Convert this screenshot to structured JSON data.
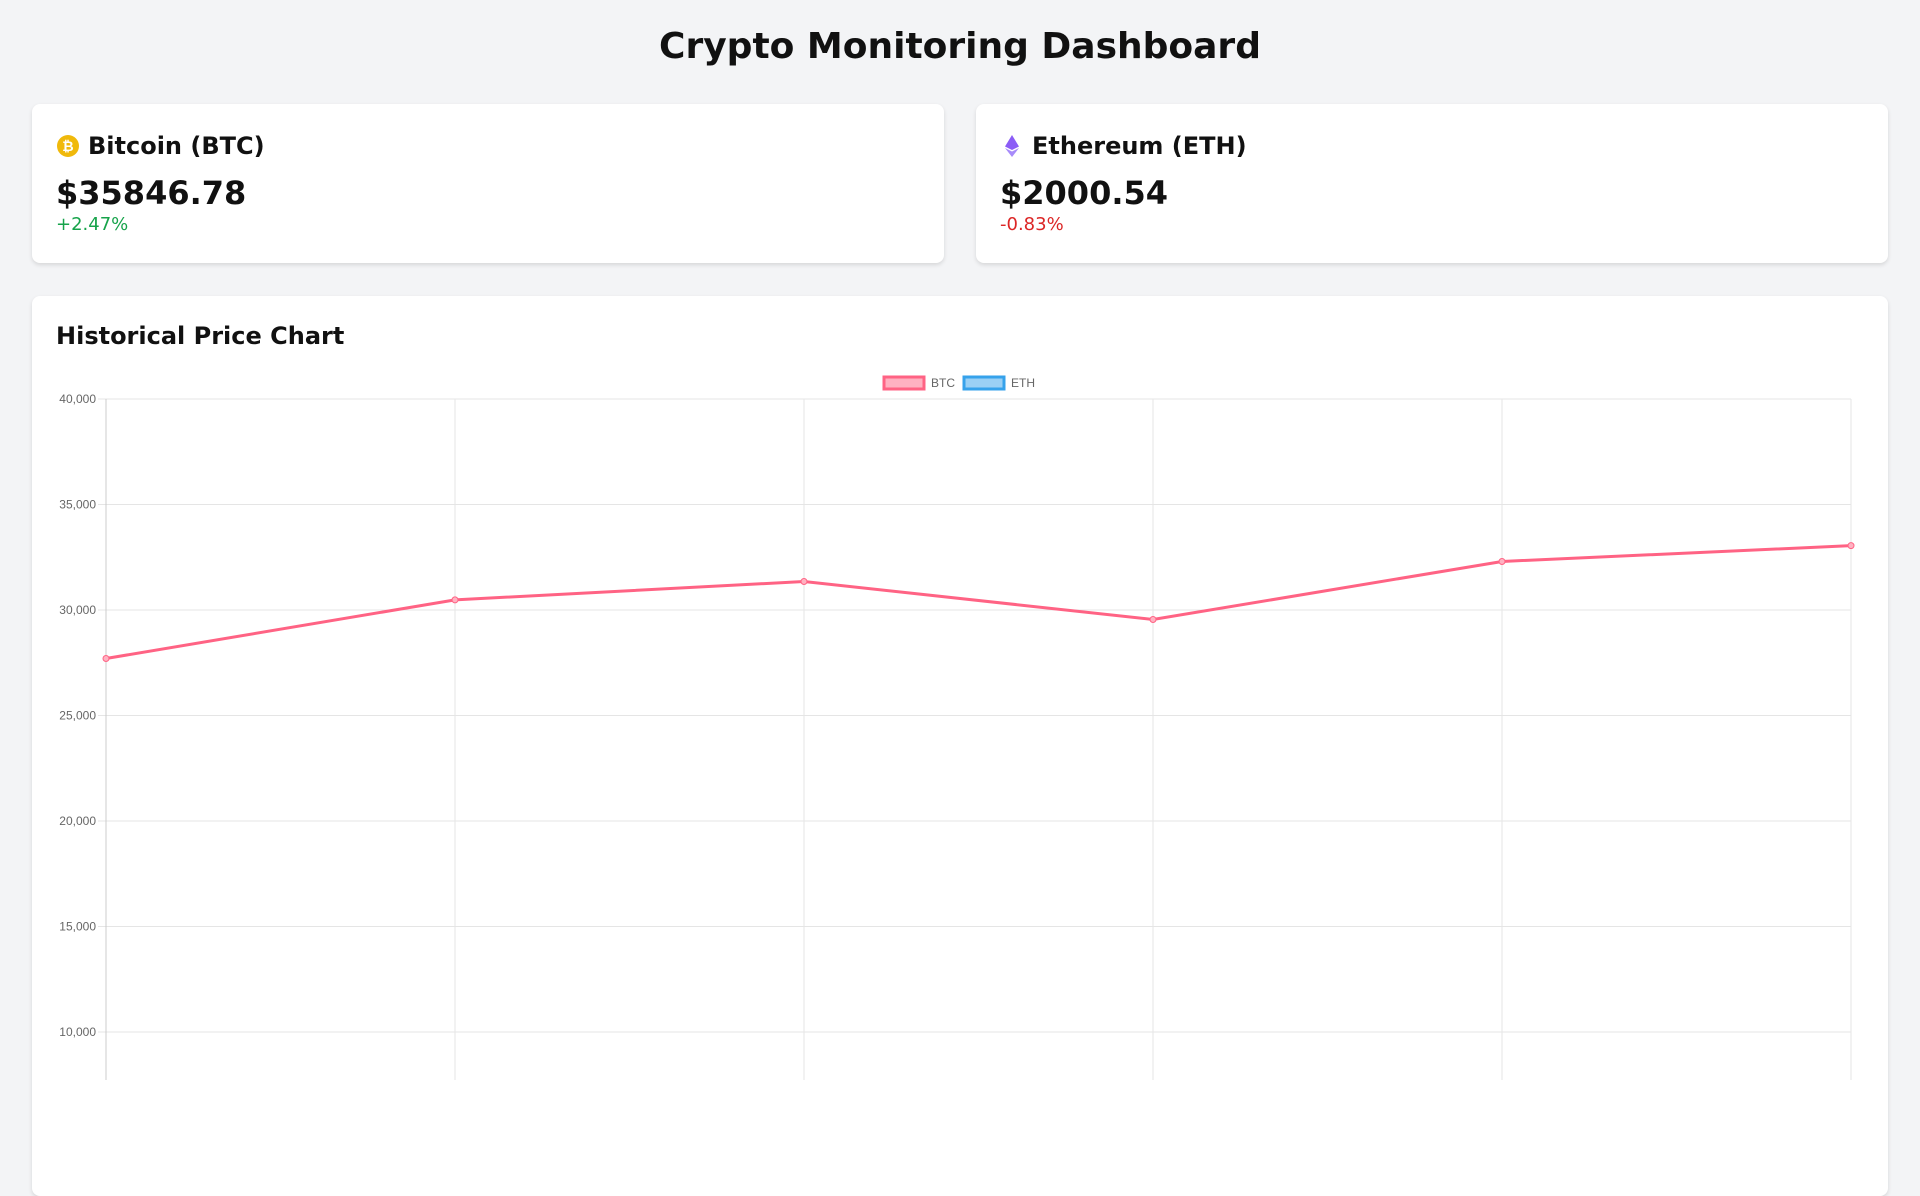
{
  "title": "Crypto Monitoring Dashboard",
  "coins": [
    {
      "name": "Bitcoin (BTC)",
      "icon": "bitcoin-icon",
      "price": "$35846.78",
      "change": "+2.47%",
      "direction": "up",
      "color": "#f0b90b"
    },
    {
      "name": "Ethereum (ETH)",
      "icon": "ethereum-icon",
      "price": "$2000.54",
      "change": "-0.83%",
      "direction": "down",
      "color": "#8b5cf6"
    }
  ],
  "chart_title": "Historical Price Chart",
  "chart_data": {
    "type": "line",
    "title": "Historical Price Chart",
    "y_ticks": [
      "40,000",
      "35,000",
      "30,000",
      "25,000",
      "20,000",
      "15,000",
      "10,000"
    ],
    "y_tick_values": [
      40000,
      35000,
      30000,
      25000,
      20000,
      15000,
      10000
    ],
    "ylim": [
      0,
      40000
    ],
    "grid": true,
    "legend_position": "top-center",
    "series": [
      {
        "name": "BTC",
        "color": "#ff6384",
        "fill": "#ffb1c1",
        "values": [
          27700,
          30480,
          31350,
          29550,
          32300,
          33050
        ]
      },
      {
        "name": "ETH",
        "color": "#36a2eb",
        "fill": "#9ad0f5",
        "values": []
      }
    ]
  }
}
